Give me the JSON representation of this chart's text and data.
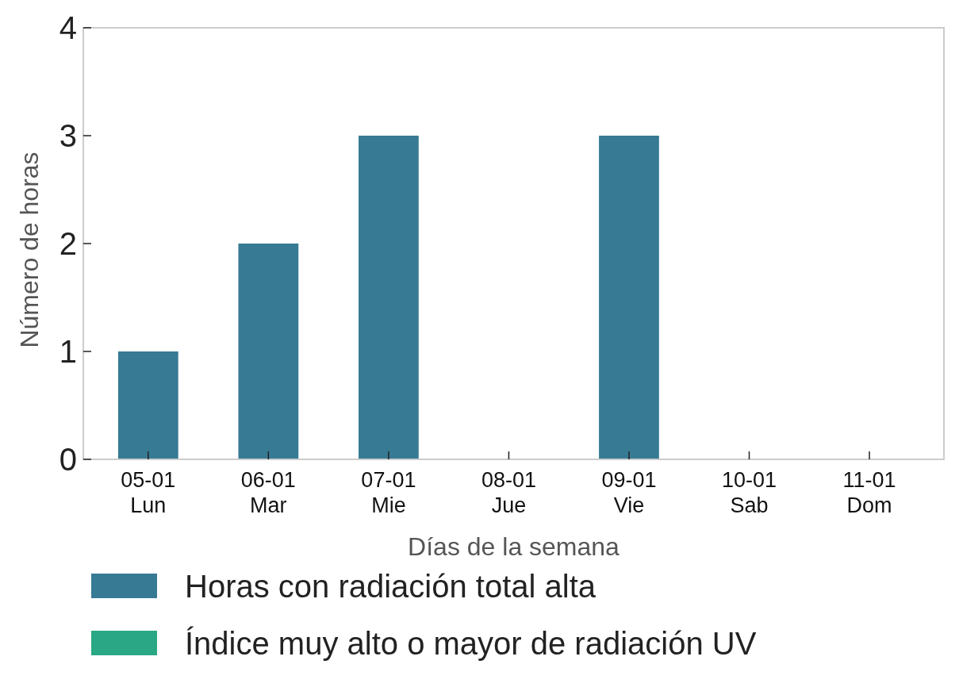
{
  "chart_data": {
    "type": "bar",
    "xlabel": "Días de la semana",
    "ylabel": "Número de horas",
    "categories": [
      "05-01\nLun",
      "06-01\nMar",
      "07-01\nMie",
      "08-01\nJue",
      "09-01\nVie",
      "10-01\nSab",
      "11-01\nDom"
    ],
    "series": [
      {
        "name": "Horas con radiación total alta",
        "color": "#377a94",
        "values": [
          1,
          2,
          3,
          0,
          3,
          0,
          0
        ]
      },
      {
        "name": "Índice muy alto o mayor de radiación UV",
        "color": "#2aa784",
        "values": [
          0,
          0,
          0,
          0,
          0,
          0,
          0
        ]
      }
    ],
    "ylim": [
      0,
      4
    ],
    "yticks": [
      0,
      1,
      2,
      3,
      4
    ],
    "legend": "bottom left"
  }
}
